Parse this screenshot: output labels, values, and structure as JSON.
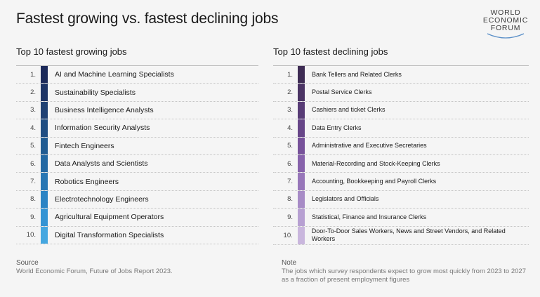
{
  "title": "Fastest growing vs. fastest declining jobs",
  "logo": {
    "lines": [
      "WORLD",
      "ECONOMIC",
      "FORUM"
    ]
  },
  "growing": {
    "heading": "Top 10 fastest growing jobs",
    "items": [
      {
        "rank": "1.",
        "label": "AI and Machine Learning Specialists",
        "color": "#1c2a5a"
      },
      {
        "rank": "2.",
        "label": "Sustainability Specialists",
        "color": "#1e3566"
      },
      {
        "rank": "3.",
        "label": "Business Intelligence Analysts",
        "color": "#1f4173"
      },
      {
        "rank": "4.",
        "label": "Information Security Analysts",
        "color": "#204e82"
      },
      {
        "rank": "5.",
        "label": "Fintech Engineers",
        "color": "#215c92"
      },
      {
        "rank": "6.",
        "label": "Data Analysts and Scientists",
        "color": "#2469a3"
      },
      {
        "rank": "7.",
        "label": "Robotics Engineers",
        "color": "#2776b3"
      },
      {
        "rank": "8.",
        "label": "Electrotechnology Engineers",
        "color": "#2c84c4"
      },
      {
        "rank": "9.",
        "label": "Agricultural Equipment Operators",
        "color": "#3494d4"
      },
      {
        "rank": "10.",
        "label": "Digital Transformation Specialists",
        "color": "#45a7e0"
      }
    ]
  },
  "declining": {
    "heading": "Top 10 fastest declining jobs",
    "items": [
      {
        "rank": "1.",
        "label": "Bank Tellers and Related Clerks",
        "color": "#3e2c54"
      },
      {
        "rank": "2.",
        "label": "Postal Service Clerks",
        "color": "#4b3464"
      },
      {
        "rank": "3.",
        "label": "Cashiers and ticket Clerks",
        "color": "#583c76"
      },
      {
        "rank": "4.",
        "label": "Data Entry Clerks",
        "color": "#674688"
      },
      {
        "rank": "5.",
        "label": "Administrative and Executive Secretaries",
        "color": "#77529a"
      },
      {
        "rank": "6.",
        "label": "Material-Recording and Stock-Keeping Clerks",
        "color": "#8762ab"
      },
      {
        "rank": "7.",
        "label": "Accounting, Bookkeeping and Payroll Clerks",
        "color": "#9776b9"
      },
      {
        "rank": "8.",
        "label": "Legislators and Officials",
        "color": "#a78bc6"
      },
      {
        "rank": "9.",
        "label": "Statistical, Finance and Insurance Clerks",
        "color": "#b7a0d2"
      },
      {
        "rank": "10.",
        "label": "Door-To-Door Sales Workers, News and Street Vendors, and Related Workers",
        "color": "#c9b6dd"
      }
    ]
  },
  "source": {
    "heading": "Source",
    "text": "World Economic Forum, Future of Jobs Report 2023."
  },
  "note": {
    "heading": "Note",
    "text": "The jobs which survey respondents expect to grow most quickly from 2023 to 2027 as a fraction of present employment figures"
  }
}
